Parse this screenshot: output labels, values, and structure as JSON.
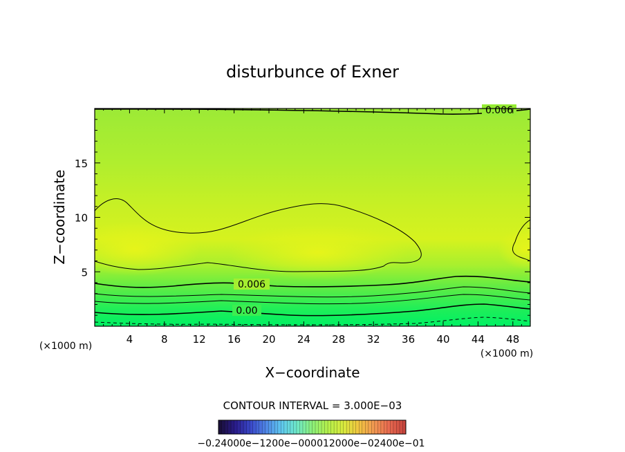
{
  "chart_data": {
    "type": "contour",
    "title": "disturbunce of Exner",
    "xlabel": "X−coordinate",
    "ylabel": "Z−coordinate",
    "x_unit_left": "(×1000 m)",
    "x_unit_right": "(×1000 m)",
    "xlim": [
      0,
      50
    ],
    "ylim": [
      0,
      20
    ],
    "x_ticks": [
      4,
      8,
      12,
      16,
      20,
      24,
      28,
      32,
      36,
      40,
      44,
      48
    ],
    "x_tick_labels": [
      "4",
      "8",
      "12",
      "16",
      "20",
      "24",
      "28",
      "32",
      "36",
      "40",
      "44",
      "48"
    ],
    "y_ticks": [
      5,
      10,
      15
    ],
    "y_tick_labels": [
      "5",
      "10",
      "15"
    ],
    "contour_labels": [
      {
        "text": "0.006",
        "x": 46.5,
        "y": 19.4
      },
      {
        "text": "0.006",
        "x": 17.8,
        "y": 3.8
      },
      {
        "text": "0.00",
        "x": 17.8,
        "y": 1.5
      }
    ],
    "contour_interval_text": "CONTOUR INTERVAL = 3.000E−03",
    "colorbar_labels": "−0.24000e−1200e−000012000e−02400e−01",
    "colorbar_colors": [
      "#1a0f3a",
      "#2a1c8c",
      "#3a49c9",
      "#4f86e6",
      "#5fc8ef",
      "#6ee8c8",
      "#8cf07a",
      "#b3f04c",
      "#d8ec3e",
      "#f0c640",
      "#f29a52",
      "#e86a50",
      "#c8463e"
    ],
    "field_colors": {
      "bottom": "#00f060",
      "mid": "#a6f032",
      "core": "#e0f21e",
      "top": "#96ec34"
    }
  }
}
